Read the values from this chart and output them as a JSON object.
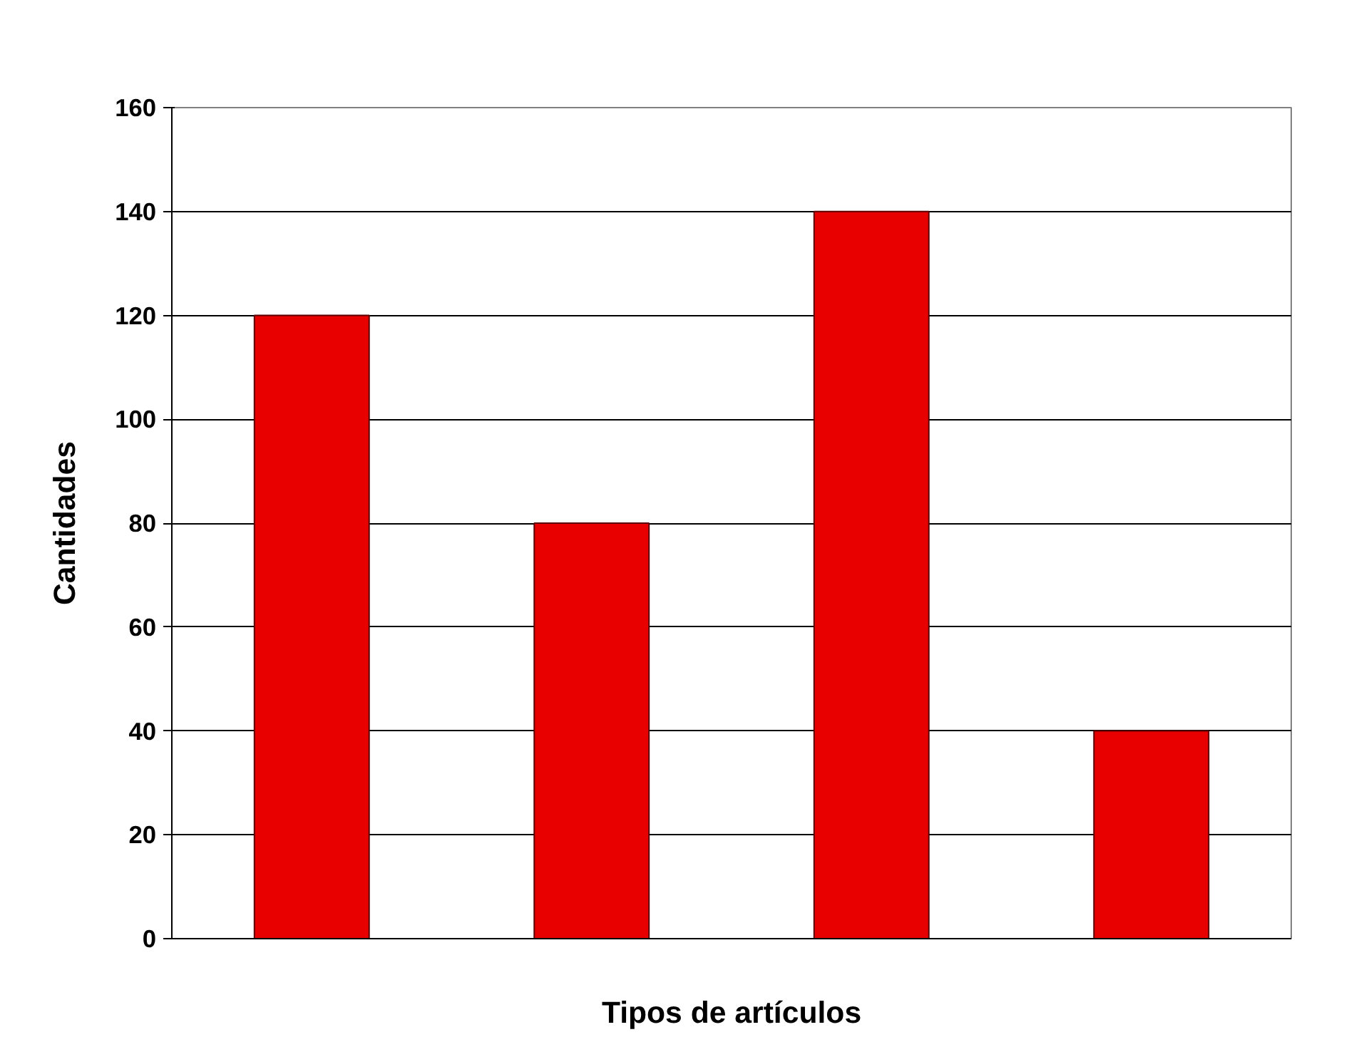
{
  "chart_data": {
    "type": "bar",
    "xlabel": "Tipos de artículos",
    "ylabel": "Cantidades",
    "categories": [
      null,
      null,
      null,
      null
    ],
    "values": [
      120,
      80,
      140,
      40
    ],
    "color": "#e80000",
    "ylim": [
      0,
      160
    ],
    "yticks": [
      0,
      20,
      40,
      60,
      80,
      100,
      120,
      140,
      160
    ],
    "grid": "y"
  }
}
